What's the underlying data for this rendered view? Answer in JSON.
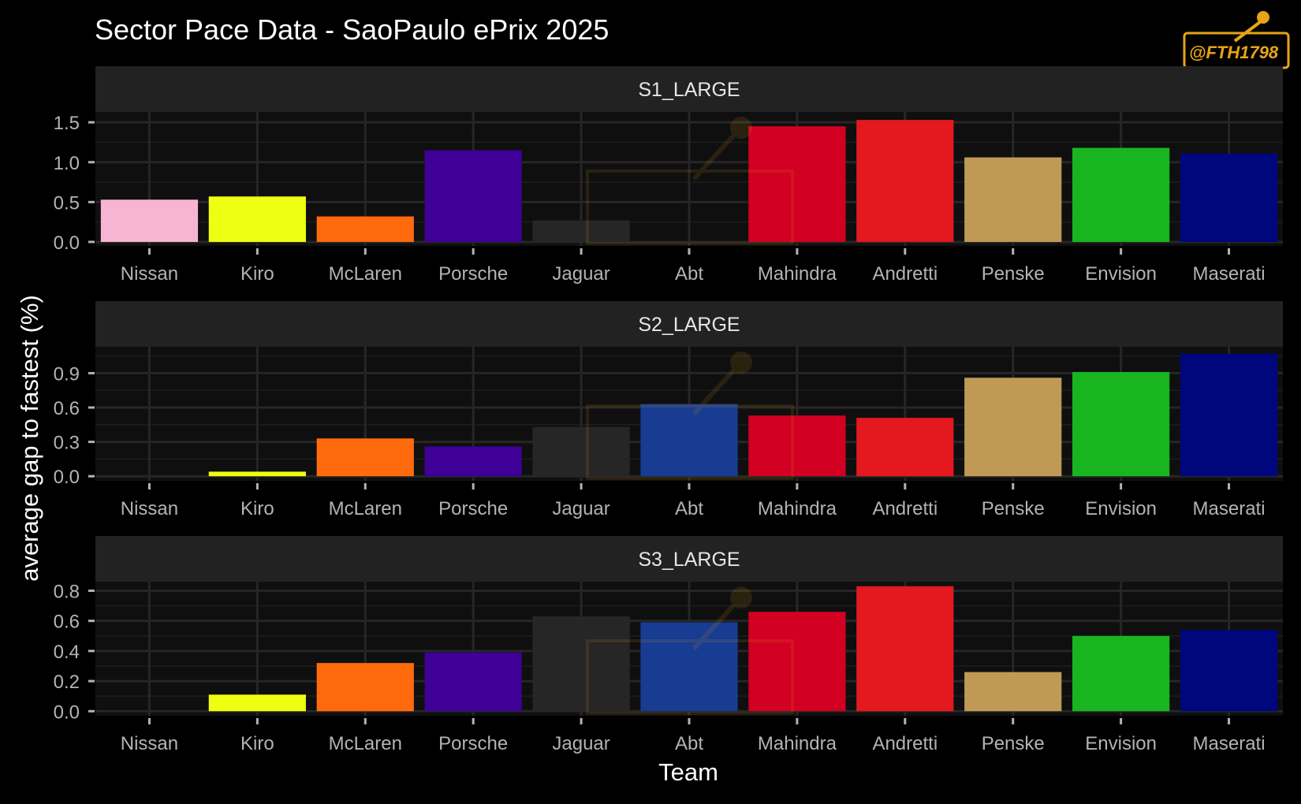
{
  "title": "Sector Pace Data - SaoPaulo ePrix 2025",
  "watermark": "@FTH1798",
  "colors": {
    "background": "#000000",
    "panel": "#0f0f0f",
    "strip": "#222222",
    "grid": "#1e1e1e"
  },
  "chart_data": [
    {
      "type": "bar",
      "panel": "S1_LARGE",
      "title": "S1_LARGE",
      "xlabel": "Team",
      "ylabel": "average gap to fastest (%)",
      "categories": [
        "Nissan",
        "Kiro",
        "McLaren",
        "Porsche",
        "Jaguar",
        "Abt",
        "Mahindra",
        "Andretti",
        "Penske",
        "Envision",
        "Maserati"
      ],
      "values": [
        0.53,
        0.57,
        0.32,
        1.15,
        0.27,
        0.0,
        1.45,
        1.53,
        1.06,
        1.18,
        1.11
      ],
      "ylim": [
        -0.05,
        1.63
      ],
      "yticks": [
        0.0,
        0.5,
        1.0,
        1.5
      ],
      "ytick_labels": [
        "0.0",
        "0.5",
        "1.0",
        "1.5"
      ]
    },
    {
      "type": "bar",
      "panel": "S2_LARGE",
      "title": "S2_LARGE",
      "xlabel": "Team",
      "ylabel": "average gap to fastest (%)",
      "categories": [
        "Nissan",
        "Kiro",
        "McLaren",
        "Porsche",
        "Jaguar",
        "Abt",
        "Mahindra",
        "Andretti",
        "Penske",
        "Envision",
        "Maserati"
      ],
      "values": [
        0.0,
        0.04,
        0.33,
        0.26,
        0.43,
        0.63,
        0.53,
        0.51,
        0.86,
        0.91,
        1.07
      ],
      "ylim": [
        -0.04,
        1.13
      ],
      "yticks": [
        0.0,
        0.3,
        0.6,
        0.9
      ],
      "ytick_labels": [
        "0.0",
        "0.3",
        "0.6",
        "0.9"
      ]
    },
    {
      "type": "bar",
      "panel": "S3_LARGE",
      "title": "S3_LARGE",
      "xlabel": "Team",
      "ylabel": "average gap to fastest (%)",
      "categories": [
        "Nissan",
        "Kiro",
        "McLaren",
        "Porsche",
        "Jaguar",
        "Abt",
        "Mahindra",
        "Andretti",
        "Penske",
        "Envision",
        "Maserati"
      ],
      "values": [
        0.0,
        0.11,
        0.32,
        0.39,
        0.63,
        0.59,
        0.66,
        0.83,
        0.26,
        0.5,
        0.54
      ],
      "ylim": [
        -0.03,
        0.86
      ],
      "yticks": [
        0.0,
        0.2,
        0.4,
        0.6,
        0.8
      ],
      "ytick_labels": [
        "0.0",
        "0.2",
        "0.4",
        "0.6",
        "0.8"
      ]
    }
  ],
  "team_colors": {
    "Nissan": "#f7b5d3",
    "Kiro": "#eeff11",
    "McLaren": "#ff6a0d",
    "Porsche": "#3e0096",
    "Jaguar": "#262626",
    "Abt": "#183c91",
    "Mahindra": "#d20022",
    "Andretti": "#e4181f",
    "Penske": "#c09a55",
    "Envision": "#19b521",
    "Maserati": "#00077c"
  },
  "axis_titles": {
    "x": "Team",
    "y": "average gap to fastest (%)"
  }
}
